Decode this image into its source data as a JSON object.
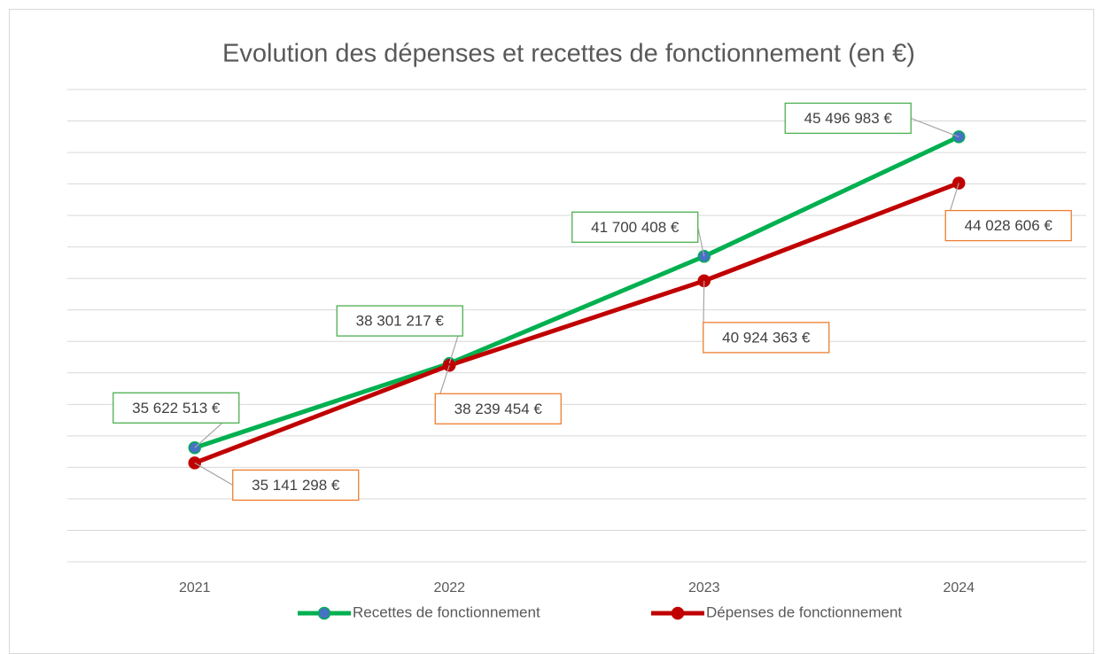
{
  "chart_data": {
    "type": "line",
    "title": "Evolution des dépenses et recettes de fonctionnement (en €)",
    "categories": [
      "2021",
      "2022",
      "2023",
      "2024"
    ],
    "series": [
      {
        "name": "Recettes de fonctionnement",
        "color": "#00b050",
        "marker_color": "#4472c4",
        "label_border": "#4caf50",
        "values": [
          35622513,
          38301217,
          41700408,
          45496983
        ],
        "value_labels": [
          "35 622 513 €",
          "38 301 217 €",
          "41 700 408 €",
          "45 496 983 €"
        ]
      },
      {
        "name": "Dépenses de fonctionnement",
        "color": "#c00000",
        "marker_color": "#c00000",
        "label_border": "#ed7d31",
        "values": [
          35141298,
          38239454,
          40924363,
          44028606
        ],
        "value_labels": [
          "35 141 298 €",
          "38 239 454 €",
          "40 924 363 €",
          "44 028 606 €"
        ]
      }
    ],
    "ylim": [
      32000000,
      47000000
    ],
    "yticks": [
      32000000,
      33000000,
      34000000,
      35000000,
      36000000,
      37000000,
      38000000,
      39000000,
      40000000,
      41000000,
      42000000,
      43000000,
      44000000,
      45000000,
      46000000,
      47000000
    ],
    "grid": true,
    "legend": "bottom"
  }
}
